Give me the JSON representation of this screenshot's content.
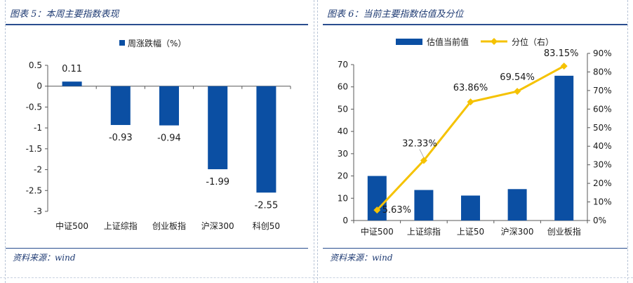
{
  "left_panel": {
    "title": "图表 5：本周主要指数表现",
    "source": "资料来源：wind"
  },
  "right_panel": {
    "title": "图表 6：当前主要指数估值及分位",
    "source": "资料来源：wind"
  },
  "colors": {
    "bar": "#0b4fa3",
    "line": "#f5c200",
    "title_text": "#1f3b73",
    "axis": "#595959",
    "text": "#1a1a1a"
  },
  "chart_data": [
    {
      "type": "bar",
      "title": "",
      "legend": [
        "周涨跌幅（%）"
      ],
      "legend_position": "top",
      "categories": [
        "中证500",
        "上证综指",
        "创业板指",
        "沪深300",
        "科创50"
      ],
      "series": [
        {
          "name": "周涨跌幅（%）",
          "values": [
            0.11,
            -0.93,
            -0.94,
            -1.99,
            -2.55
          ]
        }
      ],
      "data_labels": [
        "0.11",
        "-0.93",
        "-0.94",
        "-1.99",
        "-2.55"
      ],
      "ylim": [
        -3,
        0.5
      ],
      "yticks": [
        0.5,
        0,
        -0.5,
        -1,
        -1.5,
        -2,
        -2.5,
        -3
      ],
      "ytick_labels": [
        "0.5",
        "0",
        "-0.5",
        "-1",
        "-1.5",
        "-2",
        "-2.5",
        "-3"
      ],
      "xlabel": "",
      "ylabel": "",
      "grid": false
    },
    {
      "type": "bar",
      "title": "",
      "legend": [
        "估值当前值",
        "分位（右）"
      ],
      "legend_position": "top",
      "categories": [
        "中证500",
        "上证综指",
        "上证50",
        "沪深300",
        "创业板指"
      ],
      "series": [
        {
          "name": "估值当前值",
          "type": "bar",
          "axis": "left",
          "values": [
            20,
            13.7,
            11.2,
            14.1,
            65
          ]
        },
        {
          "name": "分位（右）",
          "type": "line",
          "axis": "right",
          "values": [
            5.63,
            32.33,
            63.86,
            69.54,
            83.15
          ]
        }
      ],
      "line_labels": [
        "5.63%",
        "32.33%",
        "63.86%",
        "69.54%",
        "83.15%"
      ],
      "ylim_left": [
        0,
        70
      ],
      "yticks_left": [
        0,
        10,
        20,
        30,
        40,
        50,
        60,
        70
      ],
      "ytick_labels_left": [
        "0",
        "10",
        "20",
        "30",
        "40",
        "50",
        "60",
        "70"
      ],
      "ylim_right": [
        0,
        90
      ],
      "yticks_right": [
        0,
        10,
        20,
        30,
        40,
        50,
        60,
        70,
        80,
        90
      ],
      "ytick_labels_right": [
        "0%",
        "10%",
        "20%",
        "30%",
        "40%",
        "50%",
        "60%",
        "70%",
        "80%",
        "90%"
      ],
      "xlabel": "",
      "ylabel": "",
      "grid": false
    }
  ]
}
